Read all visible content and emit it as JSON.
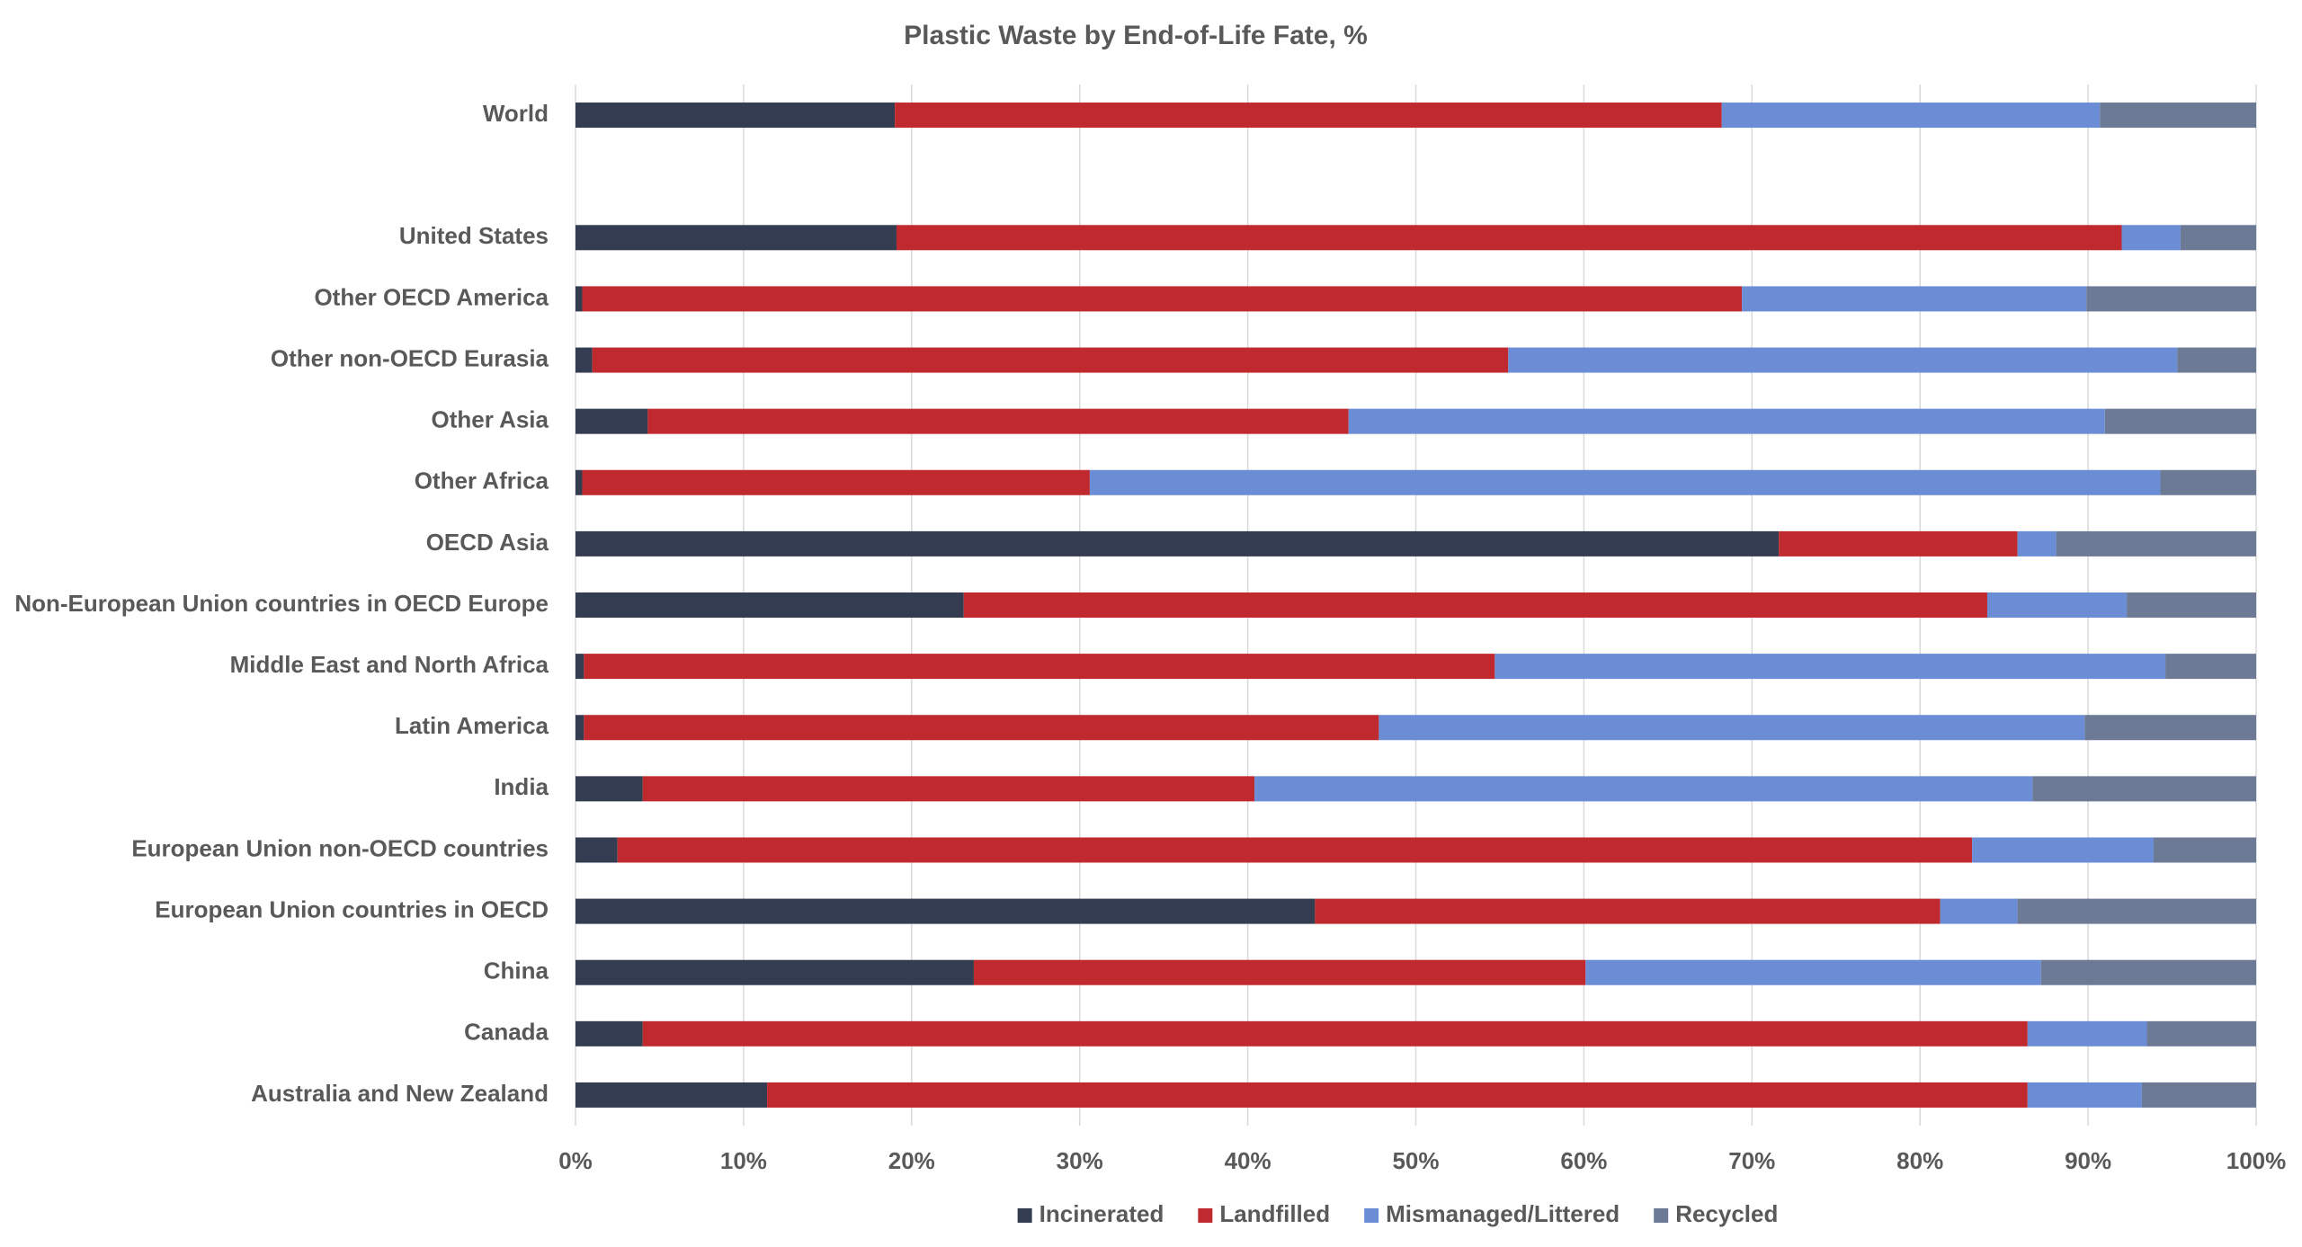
{
  "chart_data": {
    "type": "stacked-bar-horizontal",
    "title": "Plastic Waste by End-of-Life Fate, %",
    "categories": [
      "World",
      null,
      "United States",
      "Other OECD America",
      "Other non-OECD Eurasia",
      "Other Asia",
      "Other Africa",
      "OECD Asia",
      "Non-European Union countries in OECD Europe",
      "Middle East and North Africa",
      "Latin America",
      "India",
      "European Union non-OECD countries",
      "European Union countries in OECD",
      "China",
      "Canada",
      "Australia and New Zealand"
    ],
    "series": [
      {
        "name": "Incinerated",
        "color": "#333c50",
        "values": [
          19.0,
          null,
          19.1,
          0.4,
          1.0,
          4.3,
          0.4,
          71.6,
          23.1,
          0.5,
          0.5,
          4.0,
          2.5,
          44.0,
          23.7,
          4.0,
          11.4
        ]
      },
      {
        "name": "Landfilled",
        "color": "#c0292d",
        "values": [
          49.2,
          null,
          72.9,
          69.0,
          54.5,
          41.7,
          30.2,
          14.2,
          60.9,
          54.2,
          47.3,
          36.4,
          80.6,
          37.2,
          36.4,
          82.4,
          75.0
        ]
      },
      {
        "name": "Mismanaged/Littered",
        "color": "#6a8dd6",
        "values": [
          22.5,
          null,
          3.5,
          20.5,
          39.8,
          45.0,
          63.7,
          2.3,
          8.3,
          39.9,
          42.0,
          46.3,
          10.8,
          4.6,
          27.1,
          7.1,
          6.8
        ]
      },
      {
        "name": "Recycled",
        "color": "#6c7a96",
        "values": [
          9.3,
          null,
          4.5,
          10.1,
          4.7,
          9.0,
          5.7,
          11.9,
          7.7,
          5.4,
          10.2,
          13.3,
          6.1,
          14.2,
          12.8,
          6.5,
          6.8
        ]
      }
    ],
    "xlim": [
      0,
      100
    ],
    "xticks": [
      {
        "value": 0,
        "label": "0%"
      },
      {
        "value": 10,
        "label": "10%"
      },
      {
        "value": 20,
        "label": "20%"
      },
      {
        "value": 30,
        "label": "30%"
      },
      {
        "value": 40,
        "label": "40%"
      },
      {
        "value": 50,
        "label": "50%"
      },
      {
        "value": 60,
        "label": "60%"
      },
      {
        "value": 70,
        "label": "70%"
      },
      {
        "value": 80,
        "label": "80%"
      },
      {
        "value": 90,
        "label": "90%"
      },
      {
        "value": 100,
        "label": "100%"
      }
    ],
    "grid": true,
    "legend": "bottom"
  }
}
